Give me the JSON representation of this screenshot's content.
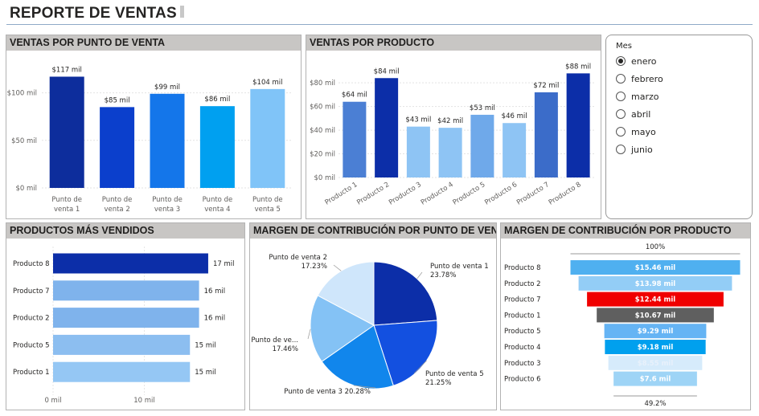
{
  "page": {
    "title": "REPORTE DE VENTAS"
  },
  "slicer": {
    "title": "Mes",
    "options": [
      "enero",
      "febrero",
      "marzo",
      "abril",
      "mayo",
      "junio"
    ],
    "selected": "enero"
  },
  "chart_data": [
    {
      "id": "ventas_punto",
      "type": "bar",
      "title": "VENTAS POR PUNTO DE VENTA",
      "categories": [
        "Punto de venta 1",
        "Punto de venta 2",
        "Punto de venta 3",
        "Punto de venta 4",
        "Punto de venta 5"
      ],
      "values": [
        117,
        85,
        99,
        86,
        104
      ],
      "data_labels": [
        "$117 mil",
        "$85 mil",
        "$99 mil",
        "$86 mil",
        "$104 mil"
      ],
      "ylim": [
        0,
        125
      ],
      "yticks": [
        0,
        50,
        100
      ],
      "ytick_labels": [
        "$0 mil",
        "$50 mil",
        "$100 mil"
      ],
      "colors": [
        "#0d2d9c",
        "#0b3fcc",
        "#1476ea",
        "#00a0f0",
        "#80c4f8"
      ]
    },
    {
      "id": "ventas_producto",
      "type": "bar",
      "title": "VENTAS POR PRODUCTO",
      "categories": [
        "Producto 1",
        "Producto 2",
        "Producto 3",
        "Producto 4",
        "Producto 5",
        "Producto 6",
        "Producto 7",
        "Producto 8"
      ],
      "values": [
        64,
        84,
        43,
        42,
        53,
        46,
        72,
        88
      ],
      "data_labels": [
        "$64 mil",
        "$84 mil",
        "$43 mil",
        "$42 mil",
        "$53 mil",
        "$46 mil",
        "$72 mil",
        "$88 mil"
      ],
      "ylim": [
        0,
        93
      ],
      "yticks": [
        0,
        20,
        40,
        60,
        80
      ],
      "ytick_labels": [
        "$0 mil",
        "$20 mil",
        "$40 mil",
        "$60 mil",
        "$80 mil"
      ],
      "colors": [
        "#4b7fd4",
        "#0c2ea8",
        "#8ec4f4",
        "#8ec4f4",
        "#6fa9ea",
        "#8ec4f4",
        "#3b6cc9",
        "#0c2ea8"
      ]
    },
    {
      "id": "productos_vendidos",
      "type": "bar",
      "orientation": "horizontal",
      "title": "PRODUCTOS MÁS VENDIDOS",
      "categories": [
        "Producto 8",
        "Producto 7",
        "Producto 2",
        "Producto 5",
        "Producto 1"
      ],
      "values": [
        17,
        16,
        16,
        15,
        15
      ],
      "data_labels": [
        "17 mil",
        "16 mil",
        "16 mil",
        "15 mil",
        "15 mil"
      ],
      "xlim": [
        0,
        20
      ],
      "xticks": [
        0,
        10
      ],
      "xtick_labels": [
        "0 mil",
        "10 mil"
      ],
      "colors": [
        "#0c2ea8",
        "#7fb3ec",
        "#7fb3ec",
        "#8cbef0",
        "#95c7f4"
      ]
    },
    {
      "id": "margen_punto",
      "type": "pie",
      "title": "MARGEN DE CONTRIBUCIÓN POR PUNTO DE VENTA",
      "slices": [
        {
          "name": "Punto de venta 1",
          "value": 23.78,
          "label": "23.78%",
          "color": "#0c2ea8"
        },
        {
          "name": "Punto de venta 5",
          "value": 21.25,
          "label": "21.25%",
          "color": "#1350e0"
        },
        {
          "name": "Punto de venta 3",
          "value": 20.28,
          "label": "20.28%",
          "color": "#1186ec"
        },
        {
          "name": "Punto de ve...",
          "value": 17.46,
          "label": "17.46%",
          "color": "#84c2f5"
        },
        {
          "name": "Punto de venta 2",
          "value": 17.23,
          "label": "17.23%",
          "color": "#cfe6fb"
        }
      ]
    },
    {
      "id": "margen_producto",
      "type": "funnel",
      "title": "MARGEN DE CONTRIBUCIÓN POR PRODUCTO",
      "categories": [
        "Producto 8",
        "Producto 2",
        "Producto 7",
        "Producto 1",
        "Producto 5",
        "Producto 4",
        "Producto 3",
        "Producto 6"
      ],
      "values": [
        15.46,
        13.98,
        12.44,
        10.67,
        9.29,
        9.18,
        8.55,
        7.6
      ],
      "data_labels": [
        "$15.46 mil",
        "$13.98 mil",
        "$12.44 mil",
        "$10.67 mil",
        "$9.29 mil",
        "$9.18 mil",
        "$8.55 mil",
        "$7.6 mil"
      ],
      "top_label": "100%",
      "bottom_label": "49.2%",
      "colors": [
        "#4fb0f0",
        "#93cdf6",
        "#f00000",
        "#5f5f5f",
        "#65b4f4",
        "#00a0ee",
        "#d6ebfb",
        "#9ed4f6"
      ]
    }
  ]
}
